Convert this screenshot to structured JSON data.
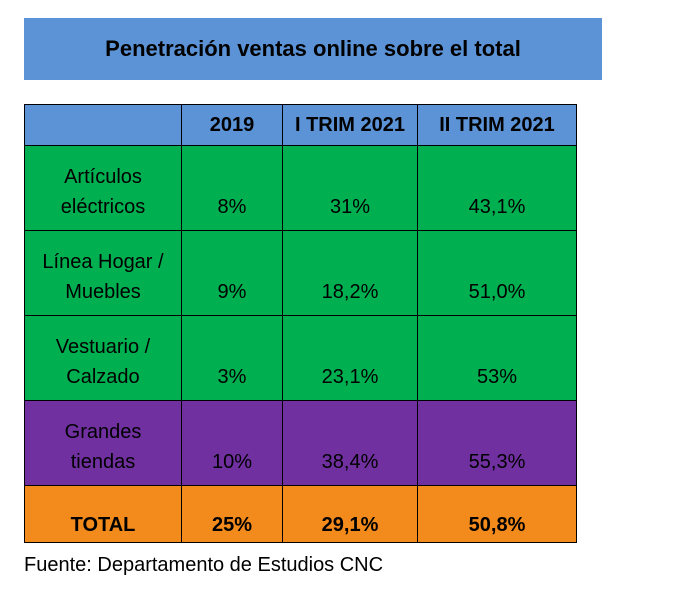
{
  "title": "Penetración ventas online sobre el total",
  "table": {
    "headers": [
      "",
      "2019",
      "I TRIM 2021",
      "II TRIM 2021"
    ],
    "rows": [
      {
        "label": "Artículos eléctricos",
        "values": [
          "8%",
          "31%",
          "43,1%"
        ],
        "color": "#00b050"
      },
      {
        "label": "Línea Hogar / Muebles",
        "values": [
          "9%",
          "18,2%",
          "51,0%"
        ],
        "color": "#00b050"
      },
      {
        "label": "Vestuario / Calzado",
        "values": [
          "3%",
          "23,1%",
          "53%"
        ],
        "color": "#00b050"
      },
      {
        "label": "Grandes tiendas",
        "values": [
          "10%",
          "38,4%",
          "55,3%"
        ],
        "color": "#7030a0"
      },
      {
        "label": "TOTAL",
        "values": [
          "25%",
          "29,1%",
          "50,8%"
        ],
        "color": "#f28a1c"
      }
    ]
  },
  "source": "Fuente: Departamento de Estudios CNC",
  "colors": {
    "header": "#5b93d6",
    "green": "#00b050",
    "purple": "#7030a0",
    "orange": "#f28a1c"
  }
}
